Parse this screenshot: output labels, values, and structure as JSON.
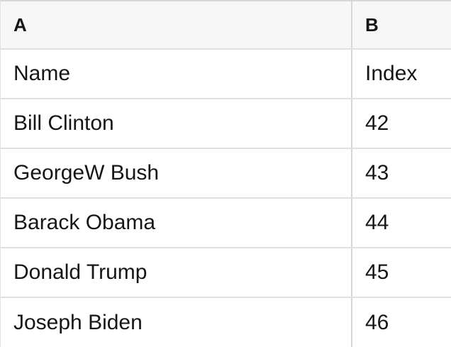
{
  "table": {
    "columns": [
      {
        "label": "A"
      },
      {
        "label": "B"
      }
    ],
    "rows": [
      {
        "cells": [
          "Name",
          "Index"
        ]
      },
      {
        "cells": [
          "Bill Clinton",
          "42"
        ]
      },
      {
        "cells": [
          "GeorgeW Bush",
          "43"
        ]
      },
      {
        "cells": [
          "Barack Obama",
          "44"
        ]
      },
      {
        "cells": [
          "Donald Trump",
          "45"
        ]
      },
      {
        "cells": [
          "Joseph Biden",
          "46"
        ]
      }
    ]
  },
  "colors": {
    "header_background": "#f7f7f7",
    "column_divider": "#d8d8d8",
    "row_divider": "#e0e0e0",
    "text": "#161616"
  }
}
